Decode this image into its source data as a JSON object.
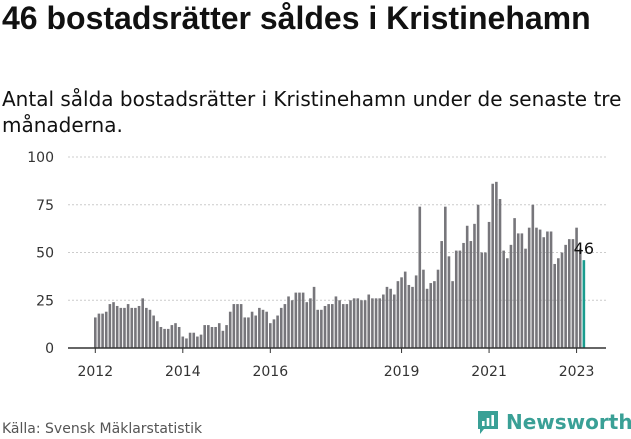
{
  "title": "46 bostadsrätter såldes i Kristinehamn",
  "subtitle": "Antal sålda bostadsrätter i Kristinehamn under de senaste tre månaderna.",
  "source": "Källa: Svensk Mäklarstatistik",
  "brand": {
    "name": "Newsworthy",
    "icon": "newsworthy-logo-icon"
  },
  "colors": {
    "bar": "#77767b",
    "highlight": "#1a9c8e",
    "axis": "#333333",
    "grid": "#cccccc"
  },
  "chart_data": {
    "type": "bar",
    "title": "46 bostadsrätter såldes i Kristinehamn",
    "xlabel": "",
    "ylabel": "",
    "ylim": [
      0,
      100
    ],
    "yticks": [
      0,
      25,
      50,
      75,
      100
    ],
    "x_start": "2012-01",
    "xticks": [
      "2012",
      "2014",
      "2016",
      "2019",
      "2021",
      "2023"
    ],
    "grid": true,
    "annotation": {
      "label": "46",
      "target": "last"
    },
    "values": [
      16,
      18,
      18,
      19,
      23,
      24,
      22,
      21,
      21,
      23,
      21,
      21,
      22,
      26,
      21,
      20,
      17,
      14,
      11,
      10,
      10,
      12,
      13,
      11,
      6,
      5,
      8,
      8,
      6,
      7,
      12,
      12,
      11,
      11,
      13,
      9,
      12,
      19,
      23,
      23,
      23,
      16,
      16,
      19,
      17,
      21,
      20,
      19,
      13,
      15,
      17,
      21,
      23,
      27,
      25,
      29,
      29,
      29,
      24,
      26,
      32,
      20,
      20,
      22,
      23,
      23,
      27,
      25,
      23,
      23,
      25,
      26,
      26,
      25,
      25,
      28,
      26,
      26,
      26,
      28,
      32,
      31,
      28,
      35,
      37,
      40,
      33,
      32,
      38,
      74,
      41,
      31,
      34,
      35,
      41,
      56,
      74,
      48,
      35,
      51,
      51,
      55,
      64,
      56,
      65,
      75,
      50,
      50,
      66,
      86,
      87,
      78,
      51,
      47,
      54,
      68,
      60,
      60,
      52,
      63,
      75,
      63,
      62,
      58,
      61,
      61,
      44,
      47,
      50,
      54,
      57,
      57,
      63,
      52,
      46
    ]
  }
}
